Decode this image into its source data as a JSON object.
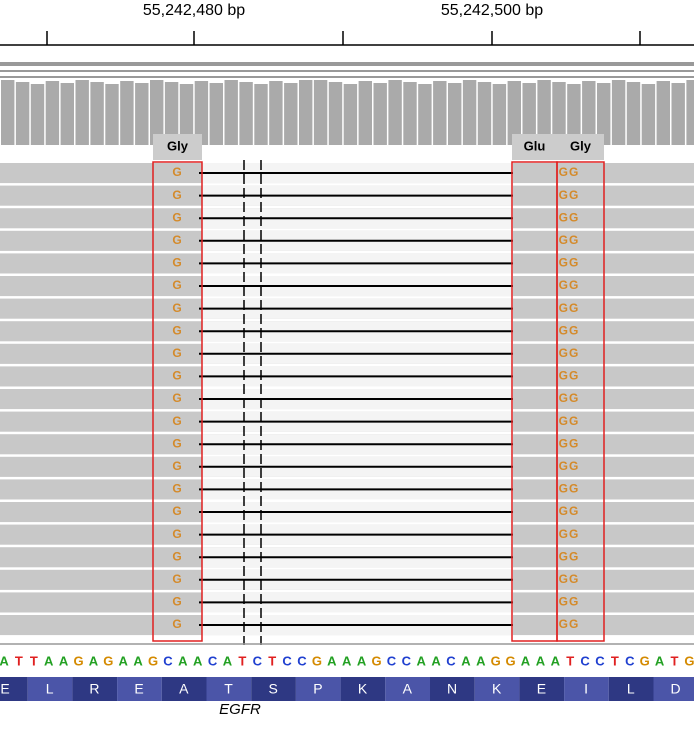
{
  "ruler": {
    "labels": [
      "55,242,480 bp",
      "55,242,500 bp"
    ]
  },
  "codon_labels": [
    "Gly",
    "Glu",
    "Gly"
  ],
  "reads": [
    {
      "left": "G",
      "right": "GG"
    },
    {
      "left": "G",
      "right": "GG"
    },
    {
      "left": "G",
      "right": "GG"
    },
    {
      "left": "G",
      "right": "GG"
    },
    {
      "left": "G",
      "right": "GG"
    },
    {
      "left": "G",
      "right": "GG"
    },
    {
      "left": "G",
      "right": "GG"
    },
    {
      "left": "G",
      "right": "GG"
    },
    {
      "left": "G",
      "right": "GG"
    },
    {
      "left": "G",
      "right": "GG"
    },
    {
      "left": "G",
      "right": "GG"
    },
    {
      "left": "G",
      "right": "GG"
    },
    {
      "left": "G",
      "right": "GG"
    },
    {
      "left": "G",
      "right": "GG"
    },
    {
      "left": "G",
      "right": "GG"
    },
    {
      "left": "G",
      "right": "GG"
    },
    {
      "left": "G",
      "right": "GG"
    },
    {
      "left": "G",
      "right": "GG"
    },
    {
      "left": "G",
      "right": "GG"
    },
    {
      "left": "G",
      "right": "GG"
    },
    {
      "left": "G",
      "right": "GG"
    }
  ],
  "sequence": [
    "A",
    "T",
    "T",
    "A",
    "A",
    "G",
    "A",
    "G",
    "A",
    "A",
    "G",
    "C",
    "A",
    "A",
    "C",
    "A",
    "T",
    "C",
    "T",
    "C",
    "C",
    "G",
    "A",
    "A",
    "A",
    "G",
    "C",
    "C",
    "A",
    "A",
    "C",
    "A",
    "A",
    "G",
    "G",
    "A",
    "A",
    "A",
    "T",
    "C",
    "C",
    "T",
    "C",
    "G",
    "A",
    "T",
    "G"
  ],
  "amino_acids": [
    "E",
    "L",
    "R",
    "E",
    "A",
    "T",
    "S",
    "P",
    "K",
    "A",
    "N",
    "K",
    "E",
    "I",
    "L",
    "D"
  ],
  "gene": "EGFR"
}
